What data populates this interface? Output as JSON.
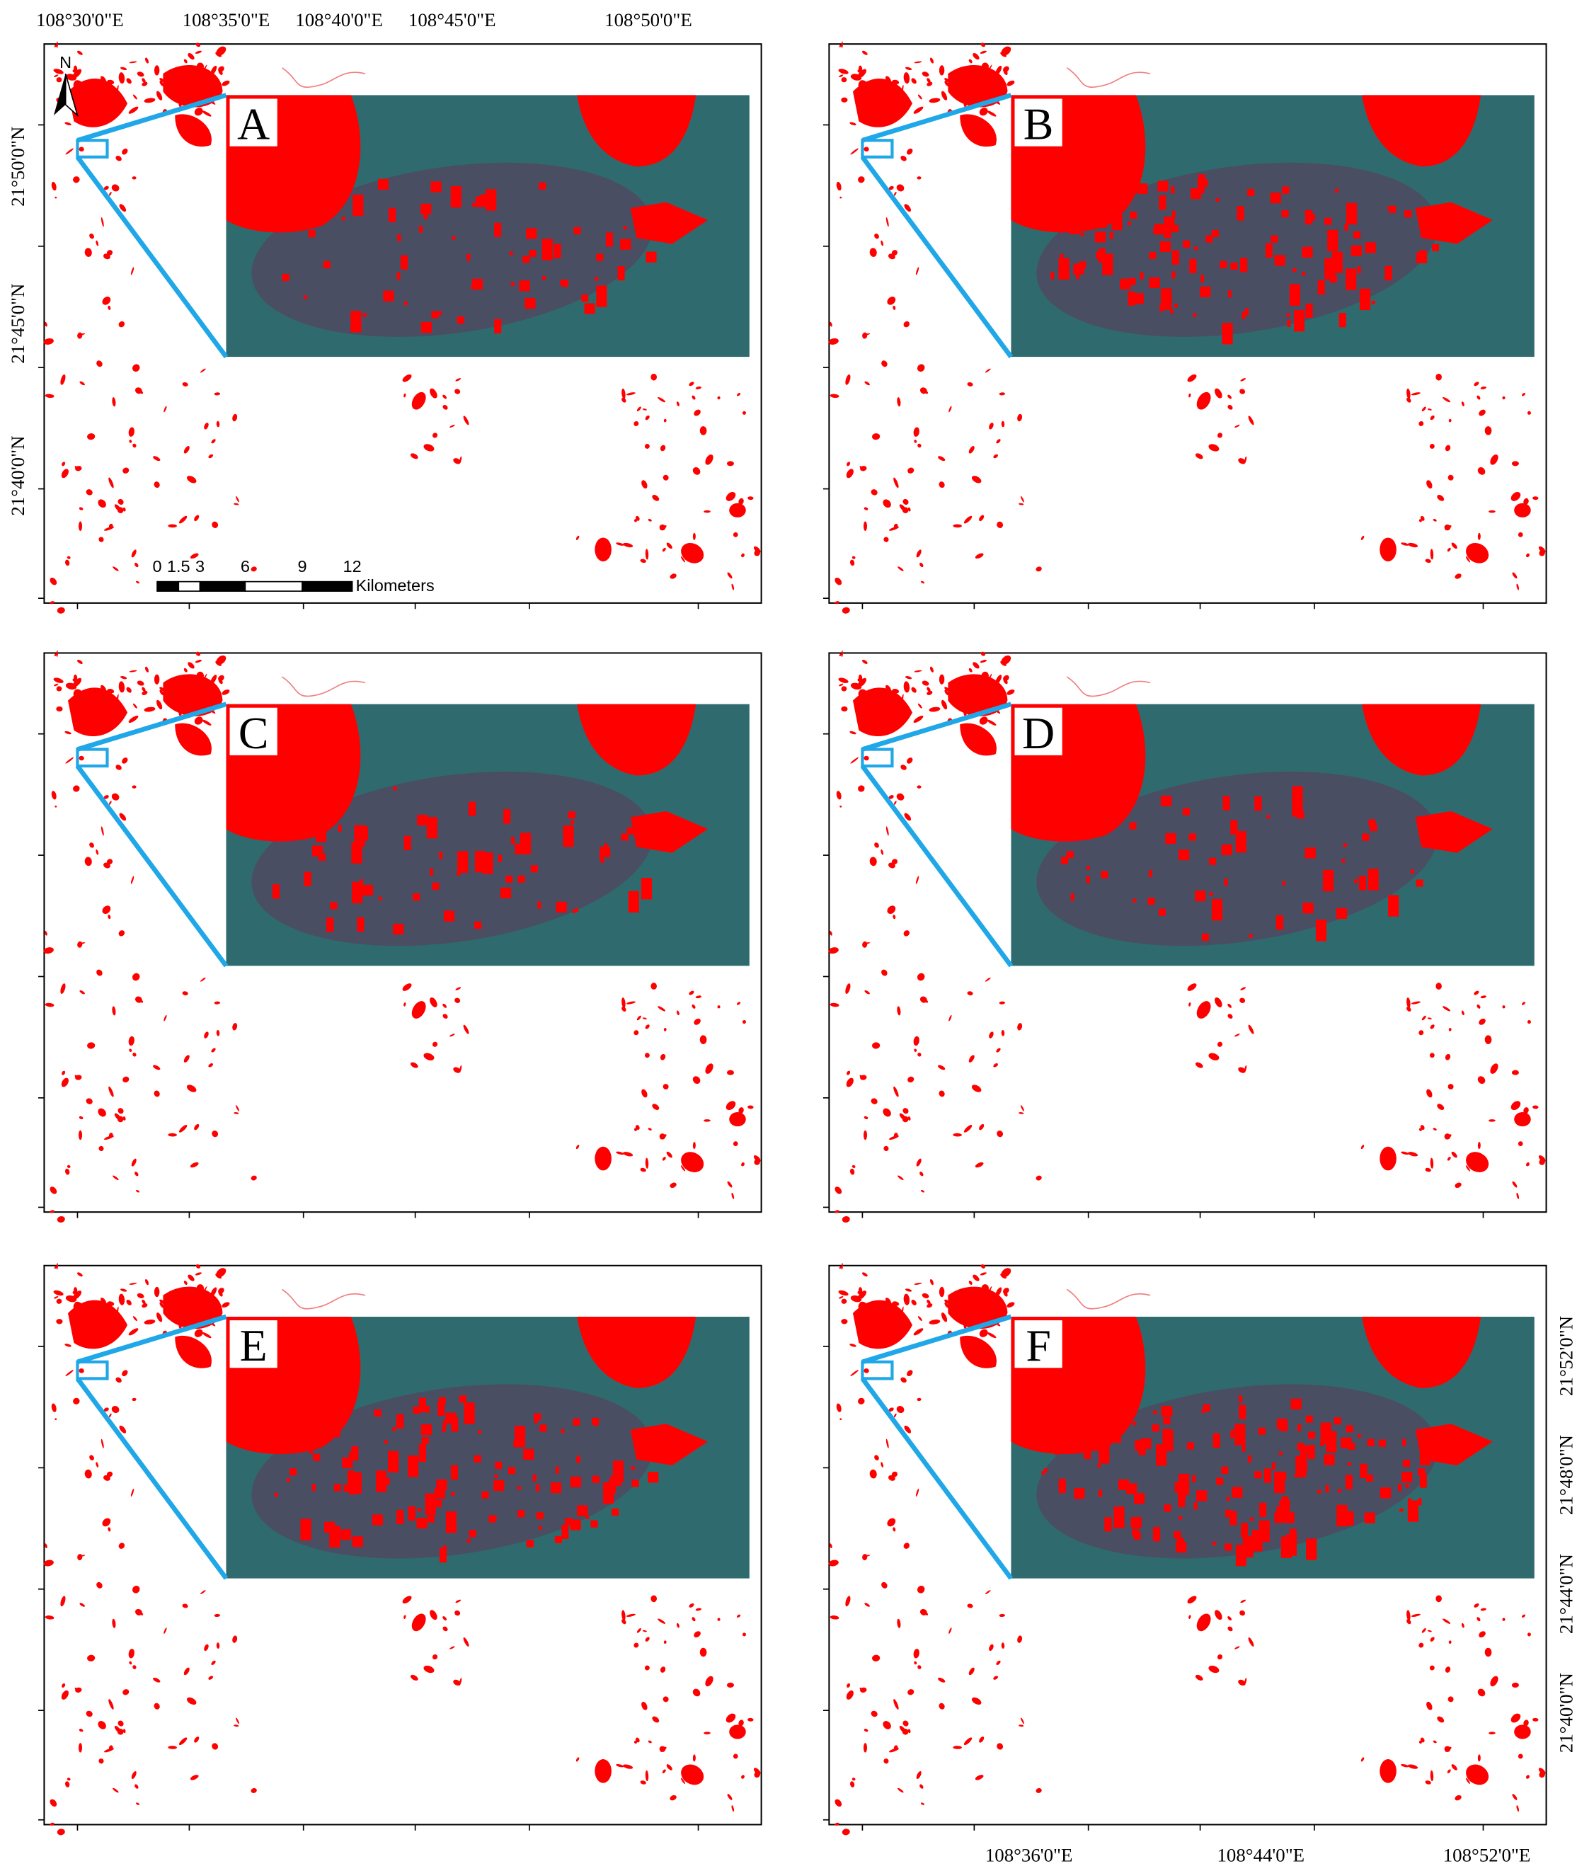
{
  "panels": [
    {
      "label": "A"
    },
    {
      "label": "B"
    },
    {
      "label": "C"
    },
    {
      "label": "D"
    },
    {
      "label": "E"
    },
    {
      "label": "F"
    }
  ],
  "top_axis_labels": [
    "108°30'0\"E",
    "108°35'0\"E",
    "108°40'0\"E",
    "108°45'0\"E",
    "108°50'0\"E"
  ],
  "left_axis_labels": [
    "21°50'0\"N",
    "21°45'0\"N",
    "21°40'0\"N"
  ],
  "right_axis_labels": [
    "21°52'0\"N",
    "21°48'0\"N",
    "21°44'0\"N",
    "21°40'0\"N"
  ],
  "bottom_axis_labels": [
    "108°36'0\"E",
    "108°44'0\"E",
    "108°52'0\"E"
  ],
  "north_arrow": "N",
  "scale_bar": {
    "ticks": [
      "0",
      "1.5",
      "3",
      "6",
      "9",
      "12"
    ],
    "unit": "Kilometers"
  }
}
